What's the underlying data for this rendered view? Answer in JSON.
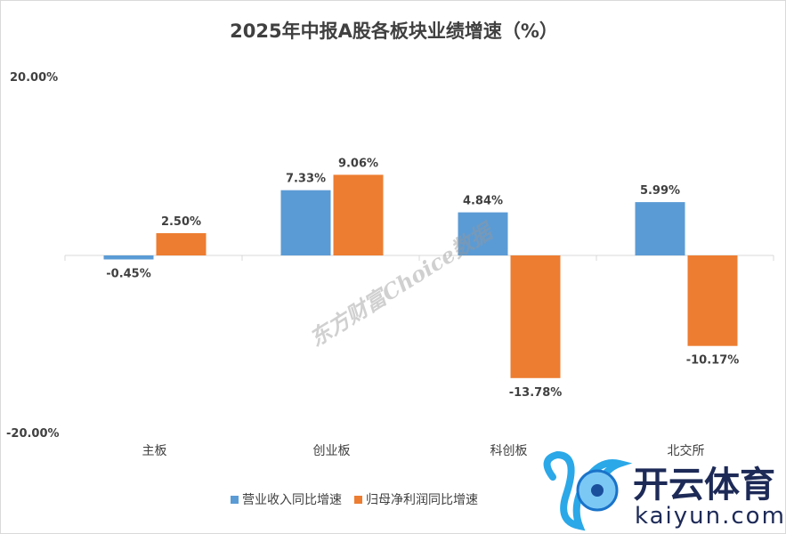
{
  "chart_data": {
    "type": "bar",
    "title": "2025年中报A股各板块业绩增速（%）",
    "categories": [
      "主板",
      "创业板",
      "科创板",
      "北交所"
    ],
    "series": [
      {
        "name": "营业收入同比增速",
        "color": "#5b9bd5",
        "values": [
          -0.45,
          7.33,
          4.84,
          5.99
        ],
        "labels": [
          "-0.45%",
          "7.33%",
          "4.84%",
          "5.99%"
        ]
      },
      {
        "name": "归母净利润同比增速",
        "color": "#ed7d31",
        "values": [
          2.5,
          9.06,
          -13.78,
          -10.17
        ],
        "labels": [
          "2.50%",
          "9.06%",
          "-13.78%",
          "-10.17%"
        ]
      }
    ],
    "ylim": [
      -20,
      20
    ],
    "yticks": [
      "20.00%",
      "-20.00%"
    ],
    "legend": "bottom",
    "grid": false
  },
  "watermark": "东方财富Choice数据",
  "logo": {
    "name": "开云体育",
    "url_text": "kaiyun.com"
  }
}
